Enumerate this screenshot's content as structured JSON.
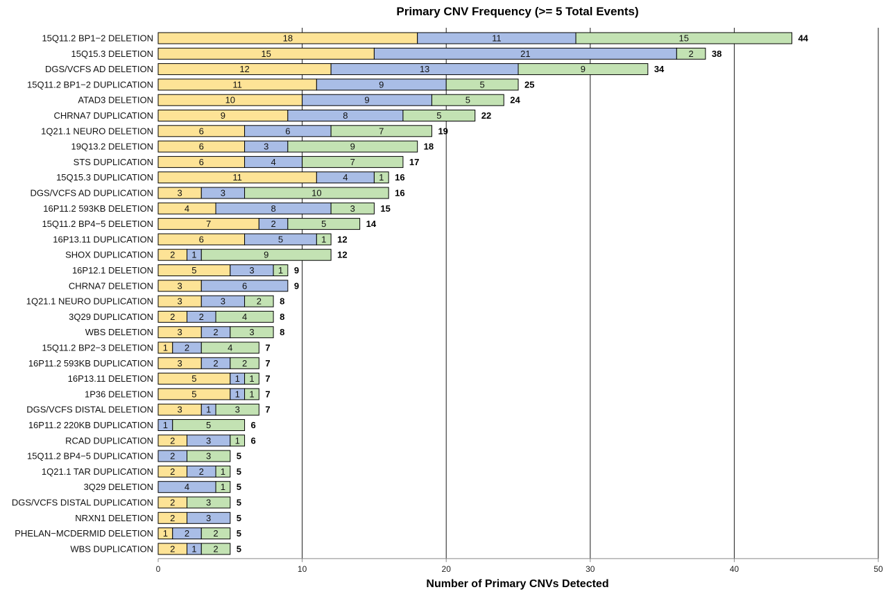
{
  "chart_data": {
    "type": "bar",
    "orientation": "horizontal",
    "stacked": true,
    "title": "Primary CNV Frequency (>= 5 Total Events)",
    "xlabel": "Number of Primary CNVs Detected",
    "ylabel": "",
    "xlim": [
      0,
      50
    ],
    "xticks": [
      0,
      10,
      20,
      30,
      40,
      50
    ],
    "grid": "vertical major gridlines",
    "legend": "none",
    "categories": [
      "15Q11.2 BP1−2 DELETION",
      "15Q15.3 DELETION",
      "DGS/VCFS AD DELETION",
      "15Q11.2 BP1−2 DUPLICATION",
      "ATAD3 DELETION",
      "CHRNA7 DUPLICATION",
      "1Q21.1 NEURO DELETION",
      "19Q13.2 DELETION",
      "STS DUPLICATION",
      "15Q15.3 DUPLICATION",
      "DGS/VCFS AD DUPLICATION",
      "16P11.2 593KB DELETION",
      "15Q11.2 BP4−5 DELETION",
      "16P13.11 DUPLICATION",
      "SHOX DUPLICATION",
      "16P12.1 DELETION",
      "CHRNA7 DELETION",
      "1Q21.1 NEURO DUPLICATION",
      "3Q29 DUPLICATION",
      "WBS DELETION",
      "15Q11.2 BP2−3 DELETION",
      "16P11.2 593KB DUPLICATION",
      "16P13.11 DELETION",
      "1P36 DELETION",
      "DGS/VCFS DISTAL DELETION",
      "16P11.2 220KB DUPLICATION",
      "RCAD DUPLICATION",
      "15Q11.2 BP4−5 DUPLICATION",
      "1Q21.1 TAR DUPLICATION",
      "3Q29 DELETION",
      "DGS/VCFS DISTAL DUPLICATION",
      "NRXN1 DELETION",
      "PHELAN−MCDERMID DELETION",
      "WBS DUPLICATION"
    ],
    "series": [
      {
        "color": "#fde396",
        "values": [
          18,
          15,
          12,
          11,
          10,
          9,
          6,
          6,
          6,
          11,
          3,
          4,
          7,
          6,
          2,
          5,
          3,
          3,
          2,
          3,
          1,
          3,
          5,
          5,
          3,
          0,
          2,
          0,
          2,
          0,
          2,
          2,
          1,
          2
        ]
      },
      {
        "color": "#a9bde6",
        "values": [
          11,
          21,
          13,
          9,
          9,
          8,
          6,
          3,
          4,
          4,
          3,
          8,
          2,
          5,
          1,
          3,
          6,
          3,
          2,
          2,
          2,
          2,
          1,
          1,
          1,
          1,
          3,
          2,
          2,
          4,
          0,
          3,
          2,
          1
        ]
      },
      {
        "color": "#c3e2b3",
        "values": [
          15,
          2,
          9,
          5,
          5,
          5,
          7,
          9,
          7,
          1,
          10,
          3,
          5,
          1,
          9,
          1,
          0,
          2,
          4,
          3,
          4,
          2,
          1,
          1,
          3,
          5,
          1,
          3,
          1,
          1,
          3,
          0,
          2,
          2
        ]
      }
    ],
    "totals": [
      44,
      38,
      34,
      25,
      24,
      22,
      19,
      18,
      17,
      16,
      16,
      15,
      14,
      12,
      12,
      9,
      9,
      8,
      8,
      8,
      7,
      7,
      7,
      7,
      7,
      6,
      6,
      5,
      5,
      5,
      5,
      5,
      5,
      5
    ]
  }
}
